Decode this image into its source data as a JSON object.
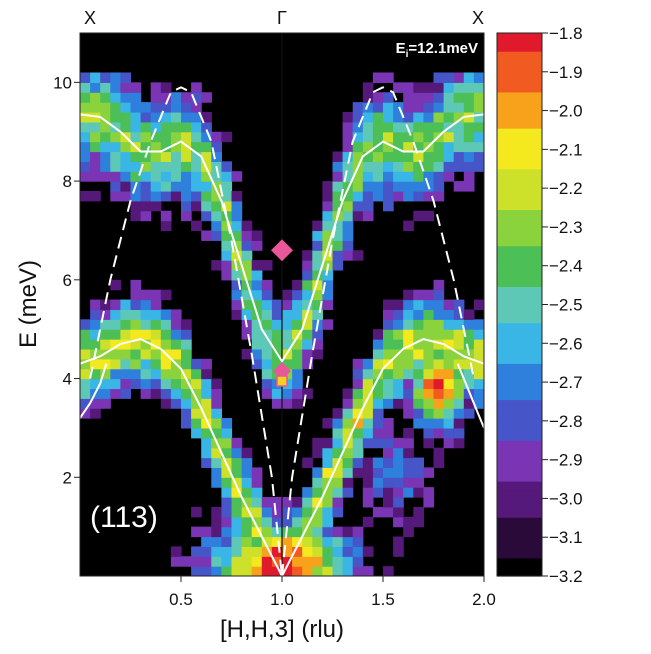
{
  "chart_data": {
    "type": "heatmap",
    "title": "",
    "panel_label": "(113)",
    "ei_prefix": "E",
    "ei_subscript": "i",
    "ei_value": "=12.1meV",
    "xlabel": "[H,H,3] (rlu)",
    "ylabel": "E (meV)",
    "xlim": [
      0.0,
      2.0
    ],
    "ylim": [
      0.0,
      11.0
    ],
    "x_ticks": [
      {
        "value": 0.5,
        "label": "0.5"
      },
      {
        "value": 1.0,
        "label": "1.0"
      },
      {
        "value": 1.5,
        "label": "1.5"
      },
      {
        "value": 2.0,
        "label": "2.0"
      }
    ],
    "y_ticks": [
      {
        "value": 2,
        "label": "2"
      },
      {
        "value": 4,
        "label": "4"
      },
      {
        "value": 6,
        "label": "6"
      },
      {
        "value": 8,
        "label": "8"
      },
      {
        "value": 10,
        "label": "10"
      }
    ],
    "top_labels": [
      {
        "value": 0.0,
        "label": "X"
      },
      {
        "value": 1.0,
        "label": "Γ"
      },
      {
        "value": 2.0,
        "label": "X"
      }
    ],
    "colorbar": {
      "min": -3.2,
      "max": -1.8,
      "tick_values": [
        -1.8,
        -1.9,
        -2.0,
        -2.1,
        -2.2,
        -2.3,
        -2.4,
        -2.5,
        -2.6,
        -2.7,
        -2.8,
        -2.9,
        -3.0,
        -3.1,
        -3.2
      ],
      "tick_labels": [
        "−1.8",
        "−1.9",
        "−2.0",
        "−2.1",
        "−2.2",
        "−2.3",
        "−2.4",
        "−2.5",
        "−2.6",
        "−2.7",
        "−2.8",
        "−2.9",
        "−3.0",
        "−3.1",
        "−3.2"
      ]
    },
    "colormap": [
      "#000000",
      "#2a0a38",
      "#55197a",
      "#7a35b5",
      "#4655c8",
      "#2f80dd",
      "#3ab6e6",
      "#5ec8b6",
      "#4cbf56",
      "#8bd33d",
      "#cde12a",
      "#f4e91e",
      "#f7a21a",
      "#f15b22",
      "#e01a2c"
    ],
    "grid": {
      "nx": 40,
      "ny": 55,
      "x_range": [
        0.0,
        2.0
      ],
      "e_range": [
        0.0,
        11.0
      ]
    },
    "annotations": {
      "vertical_line_at": 1.0,
      "solid_curves": [
        {
          "name": "upper-dispersion",
          "points": [
            [
              0.0,
              9.35
            ],
            [
              0.1,
              9.3
            ],
            [
              0.2,
              9.0
            ],
            [
              0.3,
              8.6
            ],
            [
              0.4,
              8.6
            ],
            [
              0.5,
              8.8
            ],
            [
              0.6,
              8.5
            ],
            [
              0.7,
              7.6
            ],
            [
              0.8,
              6.3
            ],
            [
              0.9,
              5.0
            ],
            [
              1.0,
              4.35
            ],
            [
              1.1,
              5.0
            ],
            [
              1.2,
              6.3
            ],
            [
              1.3,
              7.6
            ],
            [
              1.4,
              8.5
            ],
            [
              1.5,
              8.8
            ],
            [
              1.6,
              8.6
            ],
            [
              1.7,
              8.6
            ],
            [
              1.8,
              9.0
            ],
            [
              1.9,
              9.3
            ],
            [
              2.0,
              9.35
            ]
          ]
        },
        {
          "name": "lower-dispersion",
          "points": [
            [
              0.0,
              4.3
            ],
            [
              0.1,
              4.45
            ],
            [
              0.2,
              4.7
            ],
            [
              0.3,
              4.8
            ],
            [
              0.4,
              4.6
            ],
            [
              0.5,
              4.2
            ],
            [
              0.6,
              3.4
            ],
            [
              0.7,
              2.5
            ],
            [
              0.8,
              1.6
            ],
            [
              0.9,
              0.8
            ],
            [
              1.0,
              0.0
            ],
            [
              1.1,
              0.8
            ],
            [
              1.2,
              1.6
            ],
            [
              1.3,
              2.5
            ],
            [
              1.4,
              3.4
            ],
            [
              1.5,
              4.2
            ],
            [
              1.6,
              4.6
            ],
            [
              1.7,
              4.8
            ],
            [
              1.8,
              4.7
            ],
            [
              1.9,
              4.45
            ],
            [
              2.0,
              4.3
            ]
          ]
        },
        {
          "name": "left-edge-arc",
          "points": [
            [
              0.0,
              3.2
            ],
            [
              0.05,
              3.5
            ],
            [
              0.1,
              3.9
            ],
            [
              0.13,
              4.3
            ]
          ]
        },
        {
          "name": "right-edge-arc",
          "points": [
            [
              1.87,
              4.3
            ],
            [
              1.92,
              3.8
            ],
            [
              1.97,
              3.3
            ],
            [
              2.0,
              3.0
            ]
          ]
        }
      ],
      "dashed_curves": [
        {
          "name": "dashed-branch-left",
          "points": [
            [
              0.05,
              4.0
            ],
            [
              0.15,
              6.0
            ],
            [
              0.25,
              7.6
            ],
            [
              0.35,
              8.8
            ],
            [
              0.45,
              9.8
            ],
            [
              0.5,
              9.9
            ],
            [
              0.55,
              9.8
            ],
            [
              0.65,
              8.8
            ],
            [
              0.75,
              6.8
            ],
            [
              0.85,
              4.5
            ],
            [
              0.95,
              2.0
            ],
            [
              1.0,
              0.0
            ]
          ]
        },
        {
          "name": "dashed-branch-right",
          "points": [
            [
              1.0,
              0.0
            ],
            [
              1.05,
              2.0
            ],
            [
              1.15,
              4.5
            ],
            [
              1.25,
              6.8
            ],
            [
              1.35,
              8.8
            ],
            [
              1.45,
              9.8
            ],
            [
              1.5,
              9.9
            ],
            [
              1.55,
              9.8
            ],
            [
              1.65,
              8.8
            ],
            [
              1.75,
              7.6
            ],
            [
              1.85,
              6.0
            ],
            [
              1.95,
              4.0
            ]
          ]
        }
      ],
      "markers": [
        {
          "name": "diamond-marker-upper",
          "shape": "diamond",
          "x": 1.0,
          "e": 6.6,
          "color": "#e8579a"
        },
        {
          "name": "diamond-marker-lower",
          "shape": "diamond",
          "x": 1.0,
          "e": 4.15,
          "color": "#e8579a"
        },
        {
          "name": "square-marker",
          "shape": "square",
          "x": 1.0,
          "e": 3.95,
          "color": "#f2d11f"
        }
      ]
    }
  }
}
